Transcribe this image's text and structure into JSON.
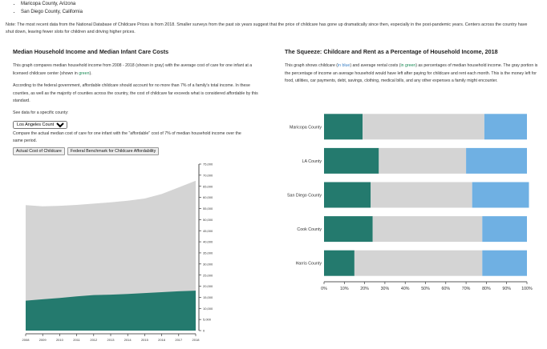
{
  "bullets": [
    "Maricopa County, Arizona",
    "San Diego County, California"
  ],
  "note": "Note: The most recent data from the National Database of Childcare Prices is from 2018. Smaller surveys from the past six years suggest that the price of childcare has gone up dramatically since then, especially in the post-pandemic years. Centers across the country have shut down, leaving fewer slots for children and driving higher prices.",
  "left": {
    "title": "Median Household Income and Median Infant Care Costs",
    "para1_a": "This graph compares median household income from 2008 - 2018 (shown in gray) with the average cost of care for one infant at a licensed childcare center (shown in ",
    "para1_green": "green",
    "para1_b": ").",
    "para2": "According to the federal government, affordable childcare should account for no more than 7% of a family's total income. In these counties, as well as the majority of counties across the country, the cost of childcare far exceeds what is considered affordable by this standard.",
    "select_label": "See data for a specific county:",
    "selected_county": "Los Angeles County",
    "compare_text": "Compare the actual median cost of care for one infant with the \"affordable\" cost of 7% of median household income over the same period.",
    "button1": "Actual Cost of Childcare",
    "button2": "Federal Benchmark for Childcare Affordability"
  },
  "right": {
    "title": "The Squeeze: Childcare and Rent as a Percentage of Household Income, 2018",
    "para_a": "This graph shows childcare (",
    "para_blue": "in blue",
    "para_b": ") and average rental costs (",
    "para_green": "in green",
    "para_c": ") as percentages of median household income. The gray portion is the percentage of income an average household would have left after paying for childcare and rent each month. This is the money left for food, utilities, car payments, debt, savings, clothing, medical bills, and any other expenses a family might encounter."
  },
  "colors": {
    "childcare": "#247a6e",
    "income": "#d4d4d4",
    "rent": "#6fb0e3"
  },
  "chart_data": [
    {
      "type": "area",
      "title": "",
      "x": [
        2008,
        2009,
        2010,
        2011,
        2012,
        2013,
        2014,
        2015,
        2016,
        2017,
        2018
      ],
      "series": [
        {
          "values": [
            56500,
            56000,
            56200,
            56600,
            57200,
            57800,
            58500,
            59500,
            61500,
            64500,
            67500
          ]
        },
        {
          "values": [
            13500,
            14100,
            14700,
            15400,
            16000,
            16200,
            16500,
            16900,
            17300,
            17700,
            18000
          ]
        }
      ],
      "ylim": [
        0,
        75000
      ],
      "yticks": [
        "0",
        "5,000",
        "10,000",
        "15,000",
        "20,000",
        "25,000",
        "30,000",
        "35,000",
        "40,000",
        "45,000",
        "50,000",
        "55,000",
        "60,000",
        "65,000",
        "70,000",
        "75,000"
      ],
      "xticks": [
        "2008",
        "2009",
        "2010",
        "2011",
        "2012",
        "2013",
        "2014",
        "2015",
        "2016",
        "2017",
        "2018"
      ]
    },
    {
      "type": "bar",
      "title": "",
      "orientation": "horizontal-stacked",
      "categories": [
        "Maricopa County",
        "LA County",
        "San Diego County",
        "Cook County",
        "Harris County"
      ],
      "series": [
        {
          "values": [
            19,
            27,
            23,
            24,
            15
          ]
        },
        {
          "values": [
            60,
            43,
            50,
            54,
            63
          ]
        },
        {
          "values": [
            21,
            30,
            28,
            22,
            22
          ]
        }
      ],
      "xlim": [
        0,
        100
      ],
      "xticks": [
        "0%",
        "10%",
        "20%",
        "30%",
        "40%",
        "50%",
        "60%",
        "70%",
        "80%",
        "90%",
        "100%"
      ]
    }
  ]
}
